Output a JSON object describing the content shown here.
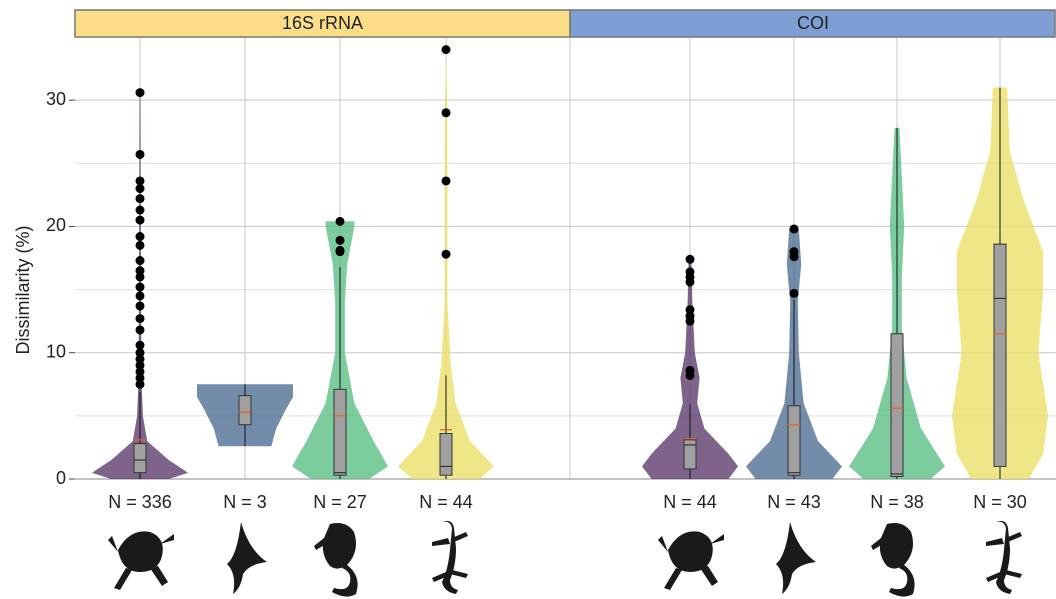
{
  "chart_data": {
    "type": "violin",
    "y_label": "Dissimilarity (%)",
    "ylim": [
      0,
      35
    ],
    "yticks": [
      0,
      10,
      20,
      30
    ],
    "minor_yticks": [
      5,
      15,
      25
    ],
    "grid": true,
    "facets": [
      {
        "label": "16S rRNA",
        "color": "#fddd88",
        "groups": [
          {
            "label": "N = 336",
            "color": "#5e3c6e",
            "box": {
              "low": 0,
              "q1": 0.5,
              "median": 1.5,
              "q3": 2.8,
              "high": 6.9
            },
            "mean": 3.1,
            "outliers": [
              30.6,
              25.7,
              23.6,
              23,
              22.2,
              21.3,
              20.5,
              19.2,
              18.5,
              17.3,
              16.5,
              16,
              15.2,
              14.5,
              13.7,
              12.7,
              11.8,
              10.6,
              10,
              9.5,
              9,
              8.5,
              8,
              7.5
            ],
            "violin": {
              "y": [
                0,
                0.5,
                1.5,
                3,
                5,
                8,
                15,
                30.6
              ],
              "width": [
                0.6,
                1,
                0.6,
                0.15,
                0.06,
                0.03,
                0.02,
                0.01
              ]
            }
          },
          {
            "label": "N = 3",
            "color": "#4f6f94",
            "box": {
              "low": 2.6,
              "q1": 4.3,
              "median": 5.3,
              "q3": 6.6,
              "high": 7.5
            },
            "mean": 5.3,
            "outliers": [],
            "violin": {
              "y": [
                2.6,
                4,
                5.5,
                6.5,
                7.5
              ],
              "width": [
                0.55,
                0.65,
                0.85,
                1,
                1
              ]
            }
          },
          {
            "label": "N = 27",
            "color": "#5cbf86",
            "box": {
              "low": 0,
              "q1": 0.3,
              "median": 0.5,
              "q3": 7.1,
              "high": 16.8
            },
            "mean": 5,
            "outliers": [
              20.4,
              18.9,
              18.1,
              18
            ],
            "violin": {
              "y": [
                0,
                1,
                3,
                6,
                10,
                14,
                17,
                20,
                20.4
              ],
              "width": [
                0.6,
                1,
                0.7,
                0.3,
                0.1,
                0.1,
                0.15,
                0.3,
                0.3
              ]
            }
          },
          {
            "label": "N = 44",
            "color": "#ebe06a",
            "box": {
              "low": 0,
              "q1": 0.3,
              "median": 1,
              "q3": 3.6,
              "high": 8.2
            },
            "mean": 3.9,
            "outliers": [
              34,
              29,
              23.6,
              17.8
            ],
            "violin": {
              "y": [
                0,
                1,
                3,
                6,
                9,
                14,
                20,
                25,
                30,
                34
              ],
              "width": [
                0.7,
                1,
                0.5,
                0.2,
                0.1,
                0.03,
                0.03,
                0.03,
                0.02,
                0
              ]
            }
          }
        ]
      },
      {
        "label": "COI",
        "color": "#7f9fd4",
        "groups": [
          {
            "label": "N = 44",
            "color": "#5e3c6e",
            "box": {
              "low": 0,
              "q1": 0.8,
              "median": 2.7,
              "q3": 3.1,
              "high": 5.9
            },
            "mean": 3.2,
            "outliers": [
              17.4,
              16.4,
              16,
              15.6,
              13.4,
              12.9,
              12.5,
              8.6,
              8.2
            ],
            "violin": {
              "y": [
                0,
                1,
                2,
                4,
                6,
                8,
                10,
                14,
                17.4
              ],
              "width": [
                0.8,
                1,
                0.8,
                0.3,
                0.15,
                0.2,
                0.1,
                0.05,
                0.03
              ]
            }
          },
          {
            "label": "N = 43",
            "color": "#4f6f94",
            "box": {
              "low": 0,
              "q1": 0.3,
              "median": 0.5,
              "q3": 5.8,
              "high": 14.2
            },
            "mean": 4.3,
            "outliers": [
              19.8,
              18,
              17.6,
              14.7
            ],
            "violin": {
              "y": [
                0,
                1,
                3,
                6,
                10,
                14,
                17,
                19.8
              ],
              "width": [
                0.8,
                1,
                0.5,
                0.2,
                0.1,
                0.08,
                0.15,
                0.1
              ]
            }
          },
          {
            "label": "N = 38",
            "color": "#5cbf86",
            "box": {
              "low": 0,
              "q1": 0.2,
              "median": 0.4,
              "q3": 11.5,
              "high": 27.8
            },
            "mean": 5.6,
            "outliers": [],
            "violin": {
              "y": [
                0,
                1,
                4,
                8,
                12,
                16,
                20,
                24,
                27.8
              ],
              "width": [
                0.7,
                1,
                0.5,
                0.2,
                0.1,
                0.1,
                0.15,
                0.1,
                0.05
              ]
            }
          },
          {
            "label": "N = 30",
            "color": "#ebe06a",
            "box": {
              "low": 0,
              "q1": 1,
              "median": 14.3,
              "q3": 18.6,
              "high": 31
            },
            "mean": 11.5,
            "outliers": [],
            "violin": {
              "y": [
                0,
                2,
                5,
                10,
                15,
                18,
                22,
                26,
                31
              ],
              "width": [
                0.6,
                0.9,
                1,
                0.8,
                0.9,
                0.9,
                0.5,
                0.2,
                0.15
              ]
            }
          }
        ]
      }
    ]
  }
}
